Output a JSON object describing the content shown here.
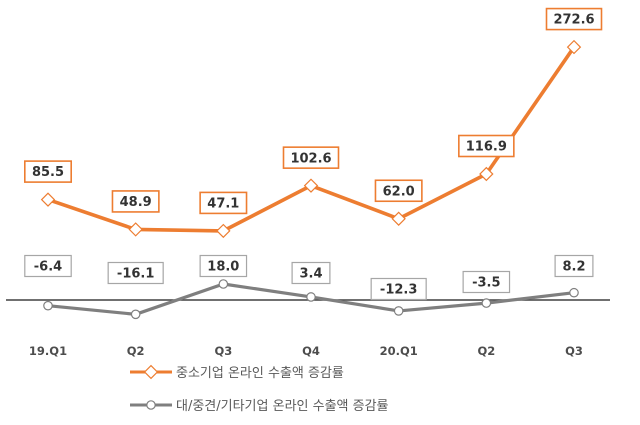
{
  "chart_data": {
    "type": "line",
    "categories": [
      "19.Q1",
      "Q2",
      "Q3",
      "Q4",
      "20.Q1",
      "Q2",
      "Q3"
    ],
    "series": [
      {
        "name": "중소기업 온라인 수출액 증감률",
        "values": [
          85.5,
          48.9,
          47.1,
          102.6,
          62.0,
          116.9,
          272.6
        ],
        "labels": [
          "85.5",
          "48.9",
          "47.1",
          "102.6",
          "62.0",
          "116.9",
          "272.6"
        ],
        "color": "#ED7D31"
      },
      {
        "name": "대/중견/기타기업 온라인 수출액 증감률",
        "values": [
          -6.4,
          -16.1,
          18.0,
          3.4,
          -12.3,
          -3.5,
          8.2
        ],
        "labels": [
          "-6.4",
          "-16.1",
          "18.0",
          "3.4",
          "-12.3",
          "-3.5",
          "8.2"
        ],
        "color": "#7f7f7f"
      }
    ],
    "xlabel": "",
    "ylabel": "",
    "title": "",
    "grid": false,
    "legend_position": "bottom"
  }
}
